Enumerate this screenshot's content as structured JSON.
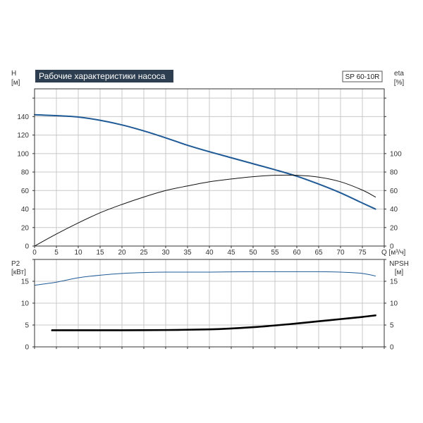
{
  "title": "Рабочие характеристики насоса",
  "model": "SP 60-10R",
  "colors": {
    "title_bg": "#2c3e50",
    "grid": "#c8c8c8",
    "head_curve": "#1f5a96",
    "eta_curve": "#111111",
    "p2_curve": "#1f5a96",
    "npsh_curve": "#000000"
  },
  "chart_data": [
    {
      "type": "line",
      "xlabel": "Q [м³/ч]",
      "xlim": [
        0,
        80
      ],
      "xticks": [
        0,
        5,
        10,
        15,
        20,
        25,
        30,
        35,
        40,
        45,
        50,
        55,
        60,
        65,
        70,
        75
      ],
      "ylabel_left": [
        "H",
        "[м]"
      ],
      "ylim_left": [
        0,
        170
      ],
      "yticks_left": [
        0,
        20,
        40,
        60,
        80,
        100,
        120,
        140
      ],
      "ylabel_right": [
        "eta",
        "[%]"
      ],
      "yticks_right": [
        0,
        20,
        40,
        60,
        80,
        100
      ],
      "grid": true,
      "series": [
        {
          "key": "head",
          "axis": "left",
          "x": [
            0,
            5,
            10,
            15,
            20,
            25,
            30,
            35,
            40,
            45,
            50,
            55,
            60,
            65,
            70,
            75,
            78
          ],
          "values": [
            142,
            141,
            139.5,
            136,
            131,
            124.5,
            117,
            109,
            102,
            95.5,
            89,
            82.5,
            75.5,
            67,
            57.5,
            46.5,
            40
          ]
        },
        {
          "key": "eta",
          "axis": "right",
          "x": [
            0,
            5,
            10,
            15,
            20,
            25,
            30,
            35,
            40,
            45,
            50,
            55,
            60,
            65,
            70,
            75,
            78
          ],
          "values": [
            0,
            13,
            25,
            36,
            45,
            53,
            60,
            65,
            69.5,
            72.5,
            75,
            76.5,
            76.5,
            74.5,
            69.5,
            60.5,
            53
          ]
        }
      ]
    },
    {
      "type": "line",
      "xlim": [
        0,
        80
      ],
      "xticks": [
        0,
        5,
        10,
        15,
        20,
        25,
        30,
        35,
        40,
        45,
        50,
        55,
        60,
        65,
        70,
        75
      ],
      "ylabel_left": [
        "P2",
        "[кВт]"
      ],
      "ylim_left": [
        0,
        20
      ],
      "yticks_left": [
        0,
        5,
        10,
        15
      ],
      "ylabel_right": [
        "NPSH",
        "[м]"
      ],
      "yticks_right": [
        0,
        5,
        10,
        15
      ],
      "grid": true,
      "series": [
        {
          "key": "p2",
          "axis": "left",
          "x": [
            0,
            5,
            10,
            15,
            20,
            25,
            30,
            40,
            50,
            60,
            65,
            70,
            75,
            78
          ],
          "values": [
            14.1,
            14.8,
            15.8,
            16.4,
            16.8,
            17.0,
            17.1,
            17.1,
            17.2,
            17.2,
            17.2,
            17.1,
            16.8,
            16.2
          ]
        },
        {
          "key": "npsh",
          "axis": "right",
          "x": [
            4,
            10,
            20,
            30,
            40,
            45,
            50,
            55,
            60,
            65,
            70,
            75,
            78
          ],
          "values": [
            3.8,
            3.8,
            3.8,
            3.85,
            4.0,
            4.2,
            4.5,
            4.9,
            5.35,
            5.85,
            6.35,
            6.85,
            7.2
          ]
        }
      ]
    }
  ]
}
